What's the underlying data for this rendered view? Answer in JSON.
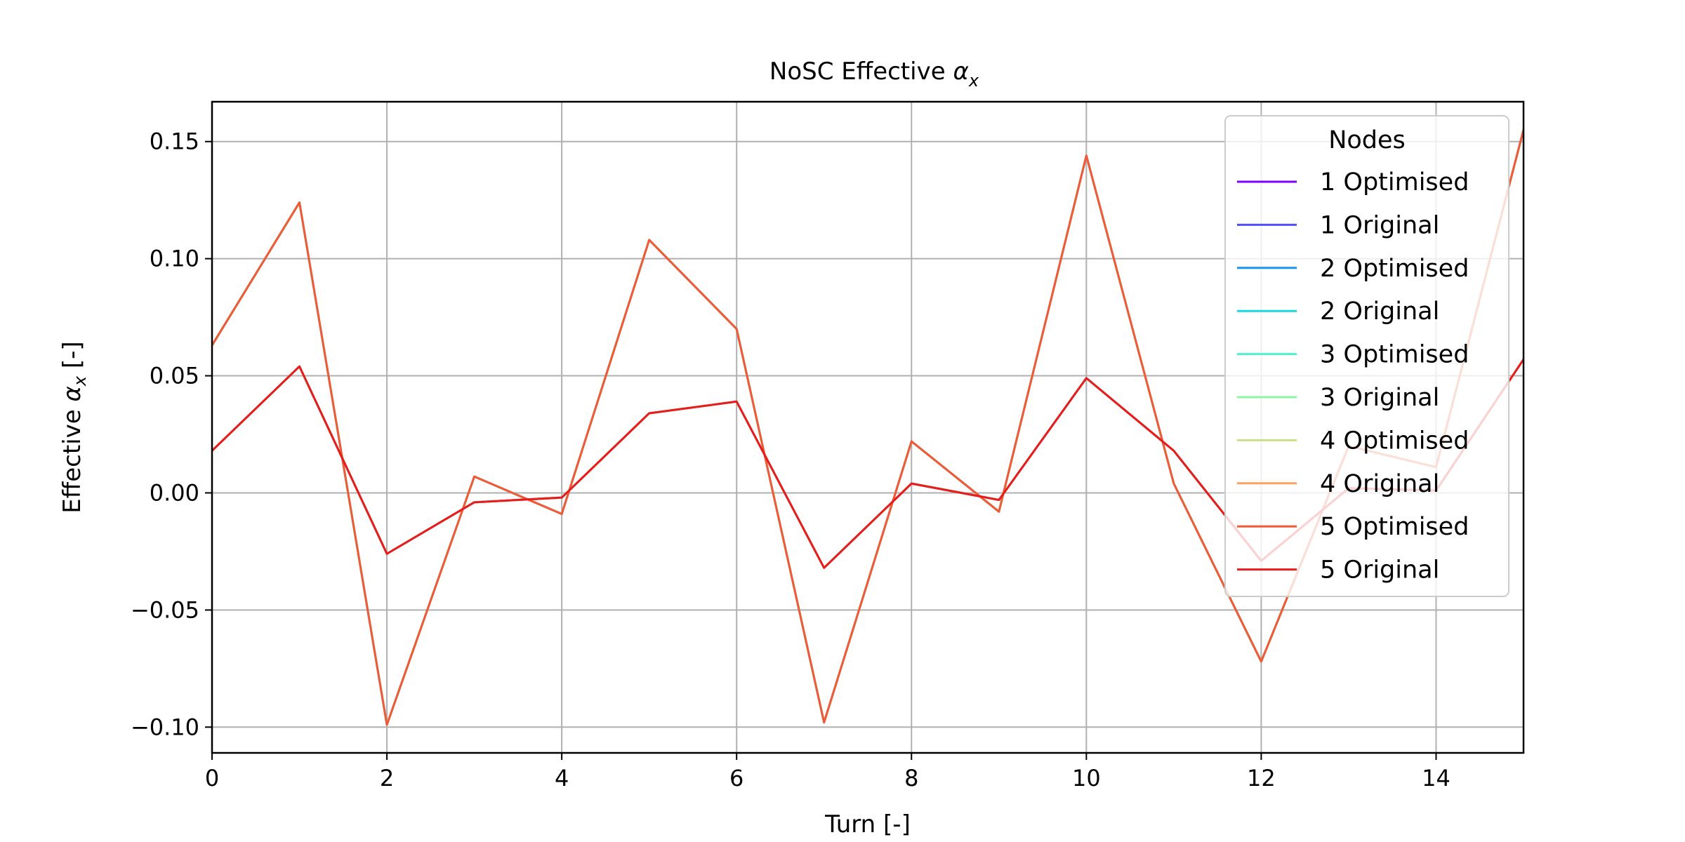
{
  "chart_data": {
    "type": "line",
    "title_main": "NoSC Effective ",
    "title_symbol": "α",
    "title_sub": "x",
    "xlabel": "Turn [-]",
    "ylabel_main": "Effective ",
    "ylabel_symbol": "α",
    "ylabel_sub": "x",
    "ylabel_unit": " [-]",
    "xlim": [
      0,
      15
    ],
    "ylim": [
      -0.111,
      0.167
    ],
    "x_ticks": [
      0,
      2,
      4,
      6,
      8,
      10,
      12,
      14
    ],
    "x_tick_labels": [
      "0",
      "2",
      "4",
      "6",
      "8",
      "10",
      "12",
      "14"
    ],
    "y_ticks": [
      -0.1,
      -0.05,
      0.0,
      0.05,
      0.1,
      0.15
    ],
    "y_tick_labels": [
      "−0.10",
      "−0.05",
      "0.00",
      "0.05",
      "0.10",
      "0.15"
    ],
    "grid": true,
    "legend_title": "Nodes",
    "legend_position": "top-right",
    "x": [
      0,
      1,
      2,
      3,
      4,
      5,
      6,
      7,
      8,
      9,
      10,
      11,
      12,
      13,
      14,
      15
    ],
    "series": [
      {
        "name": "1 Optimised",
        "color": "#8000ff",
        "values": [
          0.063,
          0.124,
          -0.099,
          0.007,
          -0.009,
          0.108,
          0.07,
          -0.098,
          0.022,
          -0.008,
          0.144,
          0.004,
          -0.072,
          0.02,
          0.011,
          0.155
        ]
      },
      {
        "name": "1 Original",
        "color": "#4f4ffb",
        "values": [
          0.018,
          0.054,
          -0.026,
          -0.004,
          -0.002,
          0.034,
          0.039,
          -0.032,
          0.004,
          -0.003,
          0.049,
          0.018,
          -0.029,
          0.002,
          0.001,
          0.057
        ]
      },
      {
        "name": "2 Optimised",
        "color": "#1996f3",
        "values": [
          0.063,
          0.124,
          -0.099,
          0.007,
          -0.009,
          0.108,
          0.07,
          -0.098,
          0.022,
          -0.008,
          0.144,
          0.004,
          -0.072,
          0.02,
          0.011,
          0.155
        ]
      },
      {
        "name": "2 Original",
        "color": "#1cd6e0",
        "values": [
          0.018,
          0.054,
          -0.026,
          -0.004,
          -0.002,
          0.034,
          0.039,
          -0.032,
          0.004,
          -0.003,
          0.049,
          0.018,
          -0.029,
          0.002,
          0.001,
          0.057
        ]
      },
      {
        "name": "3 Optimised",
        "color": "#4df3ce",
        "values": [
          0.063,
          0.124,
          -0.099,
          0.007,
          -0.009,
          0.108,
          0.07,
          -0.098,
          0.022,
          -0.008,
          0.144,
          0.004,
          -0.072,
          0.02,
          0.011,
          0.155
        ]
      },
      {
        "name": "3 Original",
        "color": "#8df6a3",
        "values": [
          0.018,
          0.054,
          -0.026,
          -0.004,
          -0.002,
          0.034,
          0.039,
          -0.032,
          0.004,
          -0.003,
          0.049,
          0.018,
          -0.029,
          0.002,
          0.001,
          0.057
        ]
      },
      {
        "name": "4 Optimised",
        "color": "#c8e08c",
        "values": [
          0.063,
          0.124,
          -0.099,
          0.007,
          -0.009,
          0.108,
          0.07,
          -0.098,
          0.022,
          -0.008,
          0.144,
          0.004,
          -0.072,
          0.02,
          0.011,
          0.155
        ]
      },
      {
        "name": "4 Original",
        "color": "#ffa060",
        "values": [
          0.018,
          0.054,
          -0.026,
          -0.004,
          -0.002,
          0.034,
          0.039,
          -0.032,
          0.004,
          -0.003,
          0.049,
          0.018,
          -0.029,
          0.002,
          0.001,
          0.057
        ]
      },
      {
        "name": "5 Optimised",
        "color": "#f05a35",
        "values": [
          0.063,
          0.124,
          -0.099,
          0.007,
          -0.009,
          0.108,
          0.07,
          -0.098,
          0.022,
          -0.008,
          0.144,
          0.004,
          -0.072,
          0.02,
          0.011,
          0.155
        ]
      },
      {
        "name": "5 Original",
        "color": "#e81c1c",
        "values": [
          0.018,
          0.054,
          -0.026,
          -0.004,
          -0.002,
          0.034,
          0.039,
          -0.032,
          0.004,
          -0.003,
          0.049,
          0.018,
          -0.029,
          0.002,
          0.001,
          0.057
        ]
      }
    ]
  }
}
